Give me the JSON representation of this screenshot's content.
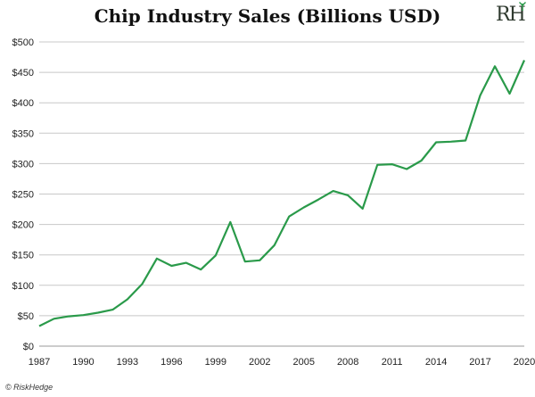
{
  "brand": {
    "logo_text": "RH",
    "credit": "© RiskHedge",
    "line_color": "#2a9a4a",
    "grid_color": "#c8c8c8"
  },
  "chart_data": {
    "type": "line",
    "title": "Chip Industry Sales (Billions USD)",
    "xlabel": "",
    "ylabel": "",
    "xlim": [
      1987,
      2020
    ],
    "ylim": [
      0,
      500
    ],
    "grid": true,
    "x_ticks": [
      "1987",
      "1990",
      "1993",
      "1996",
      "1999",
      "2002",
      "2005",
      "2008",
      "2011",
      "2014",
      "2017",
      "2020"
    ],
    "y_ticks": [
      "$0",
      "$50",
      "$100",
      "$150",
      "$200",
      "$250",
      "$300",
      "$350",
      "$400",
      "$450",
      "$500"
    ],
    "series": [
      {
        "x": [
          1987,
          1988,
          1989,
          1990,
          1991,
          1992,
          1993,
          1994,
          1995,
          1996,
          1997,
          1998,
          1999,
          2000,
          2001,
          2002,
          2003,
          2004,
          2005,
          2006,
          2007,
          2008,
          2009,
          2010,
          2011,
          2012,
          2013,
          2014,
          2015,
          2016,
          2017,
          2018,
          2019,
          2020
        ],
        "values": [
          33,
          45,
          49,
          51,
          55,
          60,
          77,
          102,
          144,
          132,
          137,
          126,
          149,
          204,
          139,
          141,
          166,
          213,
          228,
          241,
          255,
          248,
          226,
          298,
          299,
          291,
          305,
          335,
          336,
          338,
          412,
          460,
          415,
          470
        ]
      }
    ]
  }
}
